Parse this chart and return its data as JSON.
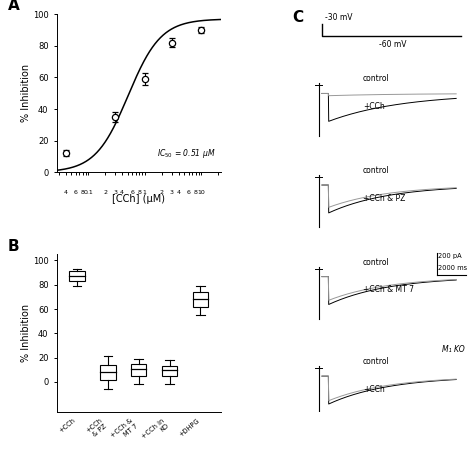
{
  "panel_A": {
    "ylabel": "% Inhibition",
    "xlabel": "[CCh] (μM)",
    "data_x": [
      0.04,
      0.3,
      1.0,
      3.0,
      10.0
    ],
    "data_y": [
      12,
      35,
      59,
      82,
      90
    ],
    "data_err": [
      2.0,
      3.0,
      4.0,
      3.0,
      2.0
    ],
    "hill_n": 1.5,
    "hill_max": 97,
    "hill_ic50": 0.51,
    "ymin": 0,
    "ymax": 100,
    "yticks": [
      0,
      20,
      40,
      60,
      80,
      100
    ]
  },
  "panel_B": {
    "ylabel": "% Inhibition",
    "yticks": [
      0,
      20,
      40,
      60,
      80,
      100
    ],
    "boxes": [
      {
        "label": "+CCh",
        "q1": 83,
        "median": 87,
        "q3": 91,
        "wlo": 79,
        "whi": 93
      },
      {
        "label": "+CCh\n& PZ",
        "q1": 2,
        "median": 8,
        "q3": 14,
        "wlo": -6,
        "whi": 21
      },
      {
        "label": "+CCh &\nMT 7",
        "q1": 5,
        "median": 11,
        "q3": 15,
        "wlo": -2,
        "whi": 19
      },
      {
        "label": "+CCh in\nKO",
        "q1": 5,
        "median": 10,
        "q3": 13,
        "wlo": -2,
        "whi": 18
      },
      {
        "label": "+DHPG",
        "q1": 62,
        "median": 68,
        "q3": 74,
        "wlo": 55,
        "whi": 79
      }
    ]
  },
  "panel_C": {
    "voltage_high": "-30 mV",
    "voltage_low": "-60 mV",
    "scale_pa": "200 pA",
    "scale_ms": "2000 ms",
    "traces": [
      {
        "ctrl_label": "control",
        "drug_label": "+CCh",
        "ctrl_amplitude": -1.0,
        "drug_amplitude": -0.08,
        "ctrl_tau": 0.55,
        "drug_tau": 0.55,
        "italic_label": null,
        "show_scale": false
      },
      {
        "ctrl_label": "control",
        "drug_label": "+CCh & PZ",
        "ctrl_amplitude": -1.0,
        "drug_amplitude": -0.8,
        "ctrl_tau": 0.45,
        "drug_tau": 0.45,
        "italic_label": null,
        "show_scale": false
      },
      {
        "ctrl_label": "control",
        "drug_label": "+CCh & MT 7",
        "ctrl_amplitude": -1.0,
        "drug_amplitude": -0.85,
        "ctrl_tau": 0.45,
        "drug_tau": 0.45,
        "italic_label": null,
        "show_scale": true
      },
      {
        "ctrl_label": "control",
        "drug_label": "+CCh",
        "ctrl_amplitude": -1.0,
        "drug_amplitude": -0.88,
        "ctrl_tau": 0.45,
        "drug_tau": 0.45,
        "italic_label": "M₁ KO",
        "show_scale": false
      }
    ]
  }
}
